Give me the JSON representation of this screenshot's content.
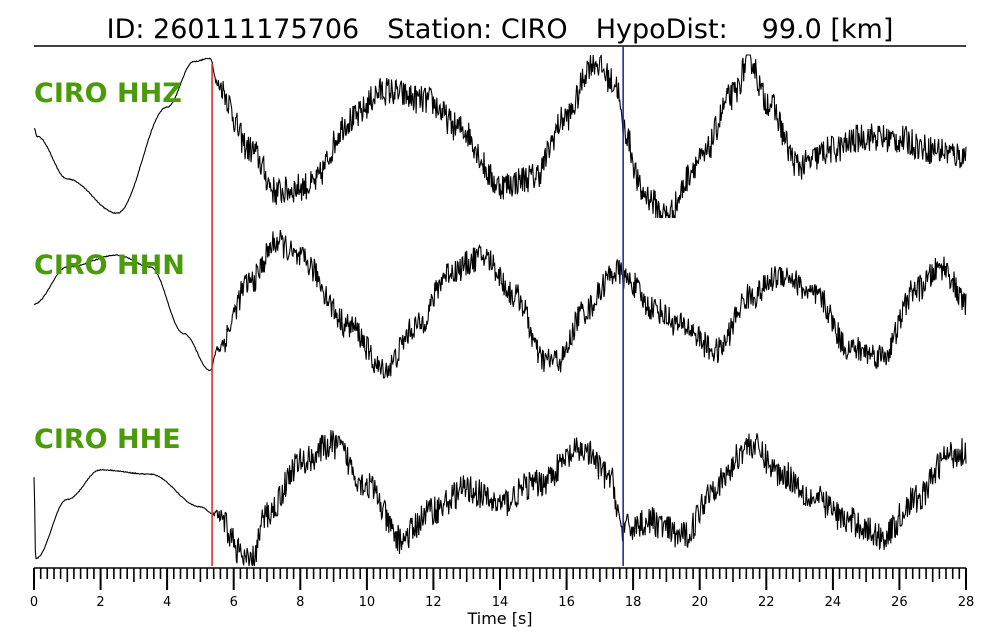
{
  "chart_data": {
    "type": "line",
    "title": {
      "id_text": "ID: 260111175706",
      "station_text": "Station: CIRO",
      "hypodist_text": "HypoDist:",
      "hypodist_value": "99.0 [km]"
    },
    "xlabel": "Time [s]",
    "xlim": [
      0,
      28
    ],
    "x_major_ticks": [
      0,
      2,
      4,
      6,
      8,
      10,
      12,
      14,
      16,
      18,
      20,
      22,
      24,
      26,
      28
    ],
    "x_minor_step": 0.2,
    "grid": false,
    "legend": "none",
    "p_pick_time": 5.35,
    "s_pick_time": 17.7,
    "colors": {
      "trace": "#000000",
      "label": "#4a9a09",
      "p_pick": "#e03030",
      "s_pick": "#2030a0",
      "axis": "#000000"
    },
    "series": [
      {
        "name": "CIRO HHZ",
        "noise": 0.09,
        "points": [
          [
            0,
            0.55
          ],
          [
            0.1,
            0.5
          ],
          [
            1.0,
            0.24
          ],
          [
            2.5,
            0.03
          ],
          [
            4.0,
            0.68
          ],
          [
            4.8,
            0.96
          ],
          [
            5.3,
            0.98
          ],
          [
            5.5,
            0.82
          ],
          [
            6.5,
            0.42
          ],
          [
            7.3,
            0.16
          ],
          [
            8.3,
            0.2
          ],
          [
            9.5,
            0.6
          ],
          [
            10.5,
            0.78
          ],
          [
            11.8,
            0.72
          ],
          [
            12.8,
            0.55
          ],
          [
            14.0,
            0.2
          ],
          [
            15.0,
            0.25
          ],
          [
            16.0,
            0.62
          ],
          [
            16.8,
            0.96
          ],
          [
            17.5,
            0.82
          ],
          [
            17.7,
            0.55
          ],
          [
            18.3,
            0.15
          ],
          [
            19.0,
            0.02
          ],
          [
            20.0,
            0.35
          ],
          [
            21.0,
            0.75
          ],
          [
            21.5,
            0.98
          ],
          [
            22.0,
            0.72
          ],
          [
            23.0,
            0.32
          ],
          [
            24.0,
            0.42
          ],
          [
            25.0,
            0.5
          ],
          [
            26.0,
            0.48
          ],
          [
            27.0,
            0.42
          ],
          [
            28.0,
            0.38
          ]
        ]
      },
      {
        "name": "CIRO HHN",
        "noise": 0.09,
        "points": [
          [
            0,
            0.5
          ],
          [
            1.0,
            0.75
          ],
          [
            2.5,
            0.83
          ],
          [
            3.5,
            0.75
          ],
          [
            4.5,
            0.3
          ],
          [
            5.3,
            0.05
          ],
          [
            5.5,
            0.2
          ],
          [
            6.5,
            0.65
          ],
          [
            7.3,
            0.92
          ],
          [
            8.0,
            0.8
          ],
          [
            9.5,
            0.35
          ],
          [
            10.5,
            0.05
          ],
          [
            11.5,
            0.35
          ],
          [
            12.5,
            0.72
          ],
          [
            13.5,
            0.82
          ],
          [
            14.5,
            0.55
          ],
          [
            15.3,
            0.12
          ],
          [
            15.8,
            0.12
          ],
          [
            16.5,
            0.45
          ],
          [
            17.5,
            0.72
          ],
          [
            17.9,
            0.65
          ],
          [
            18.5,
            0.48
          ],
          [
            19.5,
            0.35
          ],
          [
            20.5,
            0.18
          ],
          [
            21.5,
            0.55
          ],
          [
            22.5,
            0.7
          ],
          [
            23.5,
            0.55
          ],
          [
            24.5,
            0.2
          ],
          [
            25.5,
            0.15
          ],
          [
            26.5,
            0.6
          ],
          [
            27.3,
            0.75
          ],
          [
            28.0,
            0.5
          ]
        ]
      },
      {
        "name": "CIRO HHE",
        "noise": 0.1,
        "points": [
          [
            0,
            0.6
          ],
          [
            0.05,
            0.05
          ],
          [
            1.0,
            0.45
          ],
          [
            2.0,
            0.65
          ],
          [
            3.5,
            0.62
          ],
          [
            5.0,
            0.4
          ],
          [
            5.4,
            0.35
          ],
          [
            6.5,
            0.02
          ],
          [
            7.0,
            0.35
          ],
          [
            8.0,
            0.7
          ],
          [
            9.0,
            0.82
          ],
          [
            10.0,
            0.55
          ],
          [
            11.0,
            0.18
          ],
          [
            12.0,
            0.38
          ],
          [
            13.0,
            0.52
          ],
          [
            14.0,
            0.42
          ],
          [
            15.0,
            0.55
          ],
          [
            16.5,
            0.78
          ],
          [
            17.3,
            0.6
          ],
          [
            17.7,
            0.25
          ],
          [
            18.5,
            0.3
          ],
          [
            19.5,
            0.2
          ],
          [
            20.5,
            0.55
          ],
          [
            21.5,
            0.82
          ],
          [
            22.5,
            0.62
          ],
          [
            23.5,
            0.45
          ],
          [
            24.5,
            0.3
          ],
          [
            25.5,
            0.2
          ],
          [
            26.5,
            0.45
          ],
          [
            27.5,
            0.75
          ],
          [
            28.0,
            0.78
          ]
        ]
      }
    ]
  }
}
